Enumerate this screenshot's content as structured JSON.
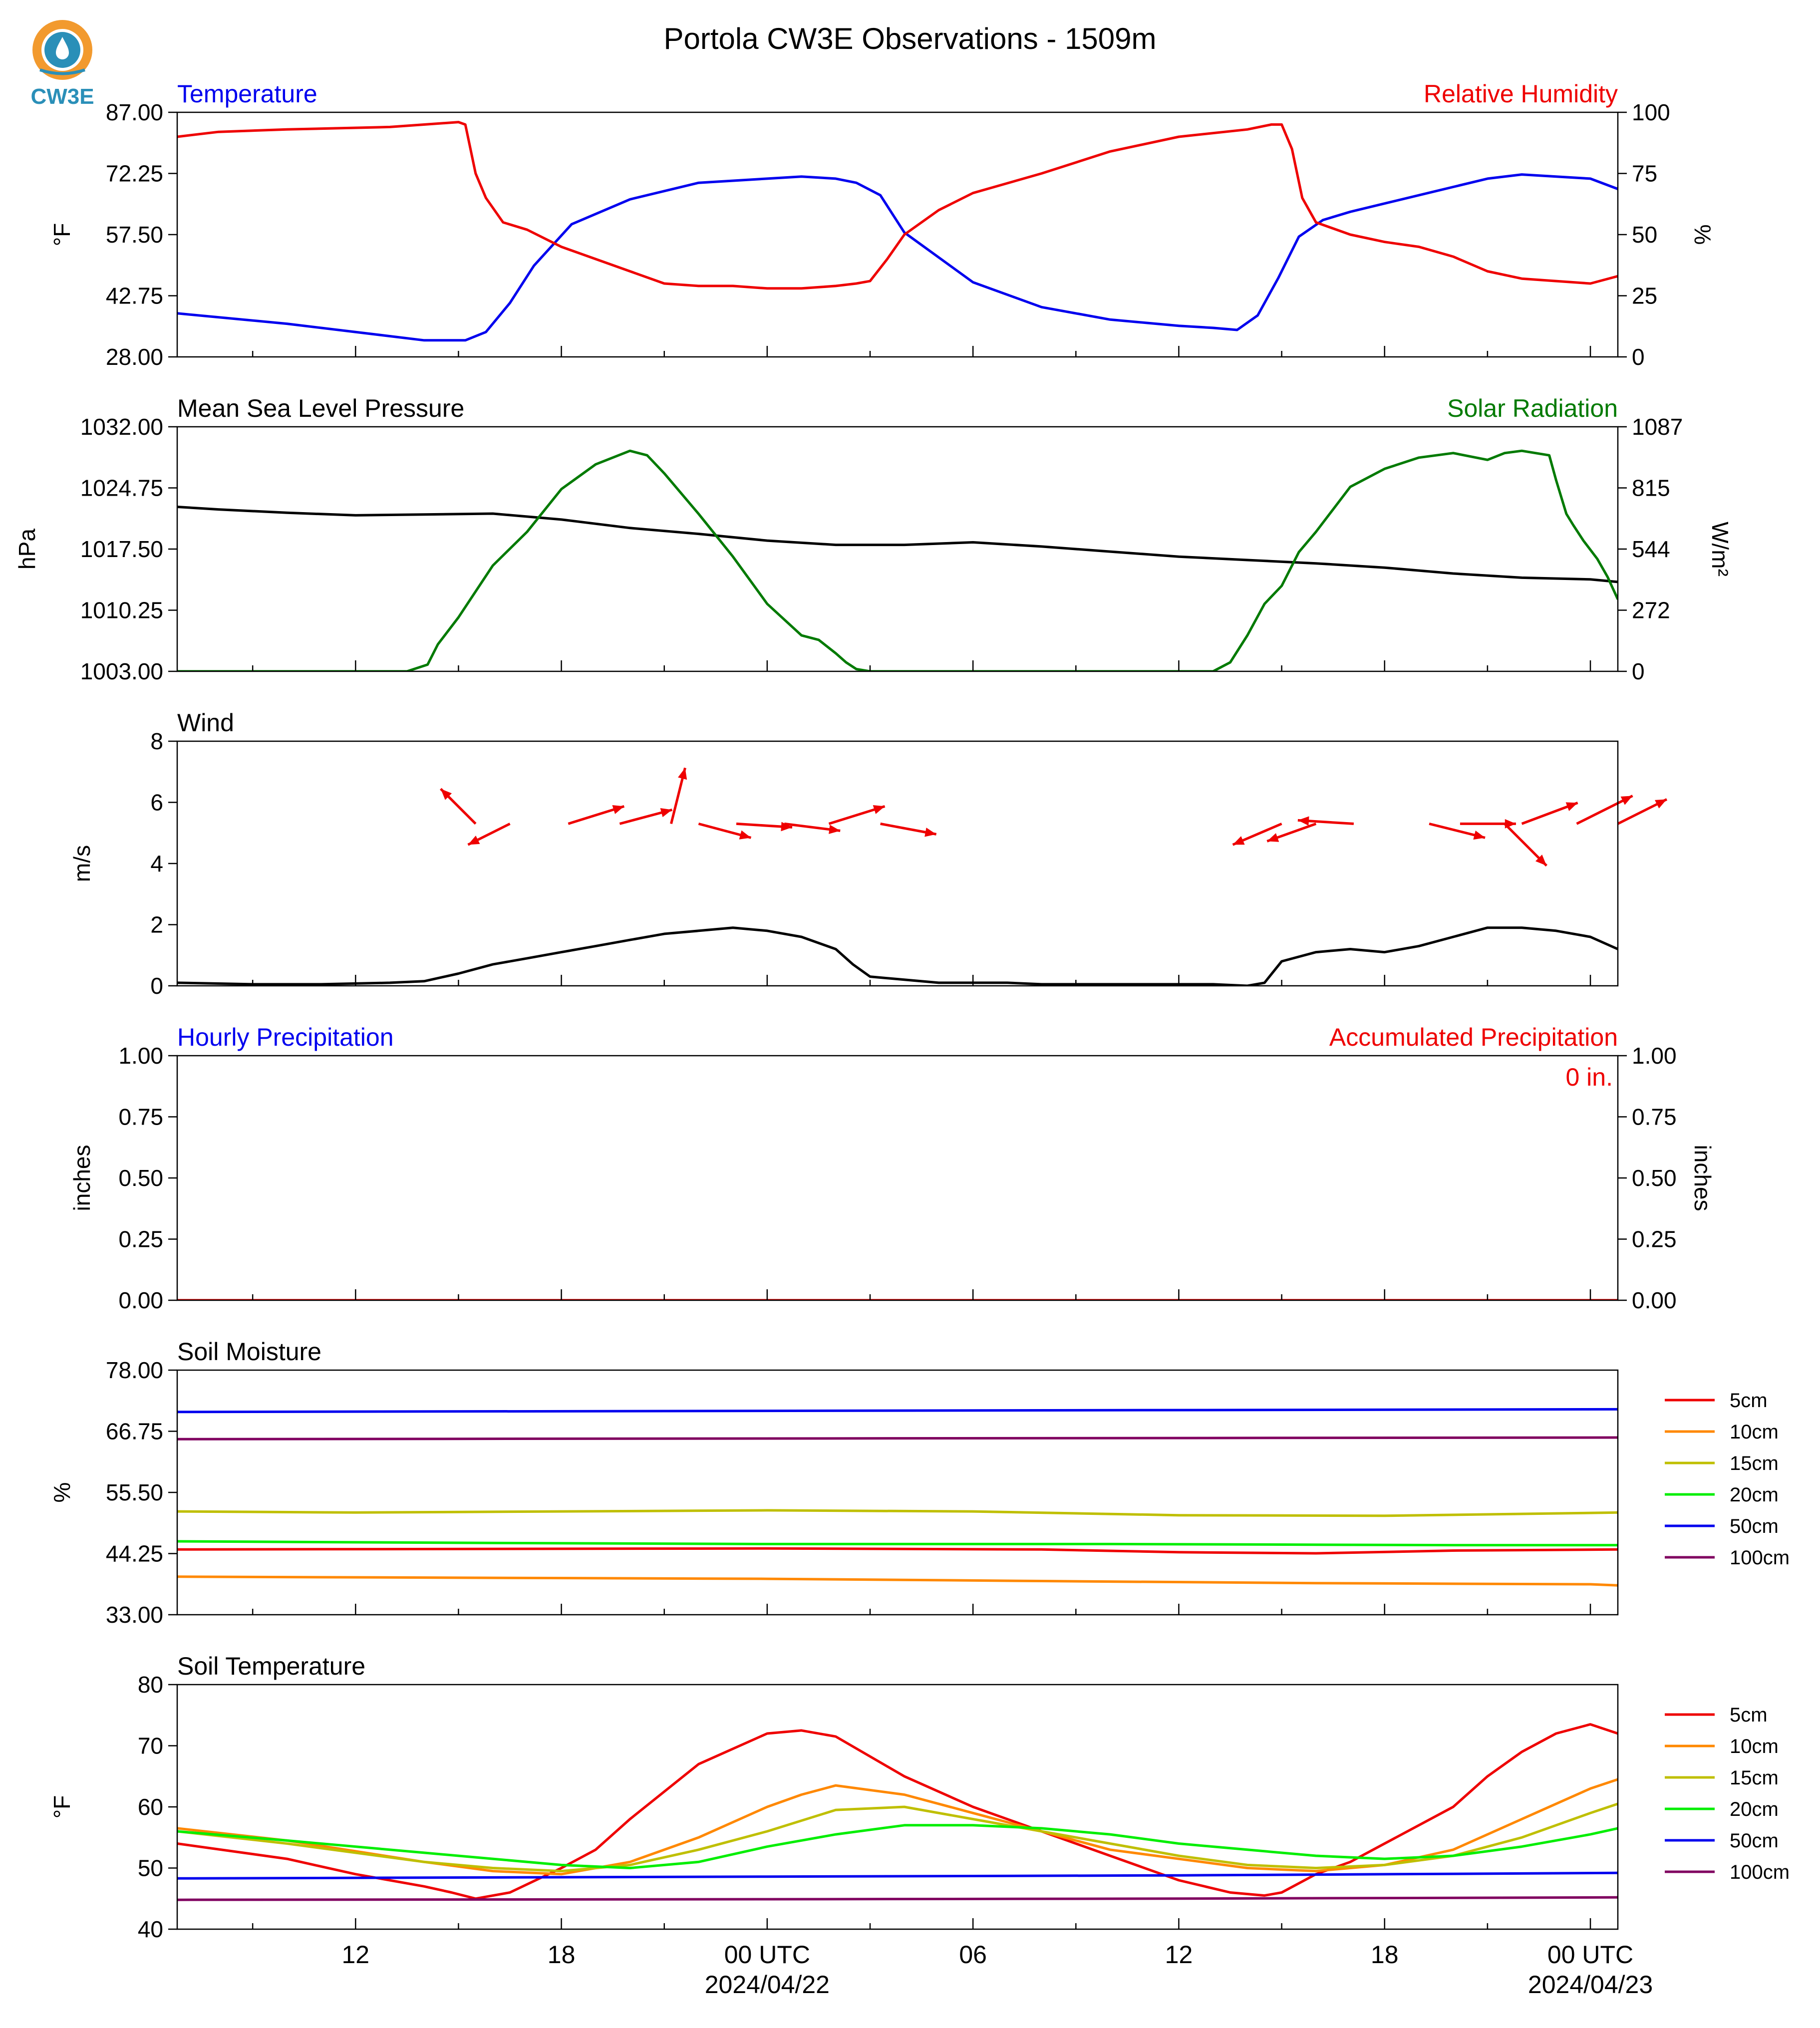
{
  "title": "Portola CW3E Observations - 1509m",
  "logo_text": "CW3E",
  "colors": {
    "temp": "#0000ee",
    "rh": "#ee0000",
    "pressure": "#000000",
    "solar": "#007a00",
    "wind_arrow": "#ee0000",
    "wind_line": "#000000",
    "d5": "#ee0000",
    "d10": "#ff8800",
    "d15": "#bfbf00",
    "d20": "#00ee00",
    "d50": "#0000ee",
    "d100": "#800060"
  },
  "x_axis": {
    "range_hours": [
      -17.2,
      24.8
    ],
    "ticks": [
      {
        "h": -12,
        "label": "12",
        "sub": ""
      },
      {
        "h": -6,
        "label": "18",
        "sub": ""
      },
      {
        "h": 0,
        "label": "00 UTC",
        "sub": "2024/04/22"
      },
      {
        "h": 6,
        "label": "06",
        "sub": ""
      },
      {
        "h": 12,
        "label": "12",
        "sub": ""
      },
      {
        "h": 18,
        "label": "18",
        "sub": ""
      },
      {
        "h": 24,
        "label": "00 UTC",
        "sub": "2024/04/23"
      }
    ]
  },
  "chart_data": [
    {
      "type": "line",
      "title_left": "Temperature",
      "title_right": "Relative Humidity",
      "ylabel_left": "$^\\circ$F",
      "ylabel_right": "%",
      "ylim": [
        28,
        87
      ],
      "yticks": [
        "28.00",
        "42.75",
        "57.50",
        "72.25",
        "87.00"
      ],
      "ylim_right": [
        0,
        100
      ],
      "yticks_right": [
        "0",
        "25",
        "50",
        "75",
        "100"
      ],
      "series": [
        {
          "name": "Temperature",
          "axis": "left",
          "x": [
            -17.2,
            -14,
            -11,
            -10,
            -8.8,
            -8.2,
            -7.5,
            -6.8,
            -5.7,
            -4,
            -2,
            0,
            1,
            2,
            2.6,
            3.3,
            4,
            6,
            8,
            10,
            12,
            13,
            13.7,
            14.3,
            14.9,
            15.5,
            16.2,
            17,
            18,
            20,
            21,
            22,
            23,
            24,
            24.8
          ],
          "y": [
            38.5,
            36,
            33,
            32,
            32,
            34,
            41,
            50,
            60,
            66,
            70,
            71,
            71.5,
            71,
            70,
            67,
            58,
            46,
            40,
            37,
            35.5,
            35,
            34.5,
            38,
            47,
            57,
            61,
            63,
            65,
            69,
            71,
            72,
            71.5,
            71,
            68.5
          ]
        },
        {
          "name": "Relative Humidity",
          "axis": "right",
          "x": [
            -17.2,
            -16,
            -14,
            -11,
            -9,
            -8.8,
            -8.5,
            -8.2,
            -7.7,
            -7,
            -6,
            -5,
            -4,
            -3,
            -2,
            -1,
            0,
            1,
            2,
            2.6,
            3,
            3.5,
            4,
            5,
            6,
            8,
            10,
            12,
            14,
            14.7,
            15,
            15.3,
            15.6,
            16,
            17,
            18,
            19,
            20,
            21,
            22,
            23,
            24,
            24.8
          ],
          "y": [
            90,
            92,
            93,
            94,
            96,
            95,
            75,
            65,
            55,
            52,
            45,
            40,
            35,
            30,
            29,
            29,
            28,
            28,
            29,
            30,
            31,
            40,
            50,
            60,
            67,
            75,
            84,
            90,
            93,
            95,
            95,
            85,
            65,
            55,
            50,
            47,
            45,
            41,
            35,
            32,
            31,
            30,
            33
          ]
        }
      ]
    },
    {
      "type": "line",
      "title_left": "Mean Sea Level Pressure",
      "title_right": "Solar Radiation",
      "ylabel_left": "hPa",
      "ylabel_right": "W/m²",
      "ylim": [
        1003,
        1032
      ],
      "yticks": [
        "1003.00",
        "1010.25",
        "1017.50",
        "1024.75",
        "1032.00"
      ],
      "ylim_right": [
        0,
        1087
      ],
      "yticks_right": [
        "0",
        "272",
        "544",
        "815",
        "1087"
      ],
      "series": [
        {
          "name": "Mean Sea Level Pressure",
          "axis": "left",
          "x": [
            -17.2,
            -16,
            -14,
            -12,
            -10,
            -8,
            -6,
            -4,
            -2,
            0,
            2,
            4,
            6,
            8,
            10,
            12,
            14,
            16,
            18,
            20,
            22,
            24,
            24.8
          ],
          "y": [
            1022.5,
            1022.2,
            1021.8,
            1021.5,
            1021.6,
            1021.7,
            1021,
            1020,
            1019.3,
            1018.5,
            1018,
            1018,
            1018.3,
            1017.8,
            1017.2,
            1016.6,
            1016.2,
            1015.8,
            1015.3,
            1014.6,
            1014.1,
            1013.9,
            1013.6
          ]
        },
        {
          "name": "Solar Radiation",
          "axis": "right",
          "x": [
            -17.2,
            -10.5,
            -9.9,
            -9.6,
            -9,
            -8,
            -7,
            -6,
            -5,
            -4,
            -3.5,
            -3,
            -2,
            -1,
            0,
            1,
            1.5,
            2,
            2.3,
            2.6,
            3,
            13,
            13.5,
            14,
            14.5,
            15,
            15.5,
            16,
            17,
            18,
            19,
            20,
            21,
            21.5,
            22,
            22.8,
            23,
            23.3,
            23.5,
            23.8,
            24.2,
            24.5,
            24.8
          ],
          "y": [
            0,
            0,
            30,
            120,
            240,
            470,
            620,
            810,
            920,
            980,
            960,
            880,
            700,
            510,
            300,
            160,
            140,
            80,
            40,
            10,
            0,
            0,
            40,
            160,
            300,
            380,
            530,
            620,
            820,
            900,
            950,
            970,
            940,
            970,
            980,
            960,
            850,
            700,
            650,
            580,
            500,
            420,
            320
          ]
        }
      ]
    },
    {
      "type": "line",
      "title_left": "Wind",
      "ylabel_left": "m/s",
      "ylim": [
        0,
        8
      ],
      "yticks": [
        "0",
        "2",
        "4",
        "6",
        "8"
      ],
      "series": [
        {
          "name": "Wind Speed",
          "axis": "left",
          "x": [
            -17.2,
            -15,
            -13,
            -11,
            -10,
            -9,
            -8,
            -7,
            -6,
            -5,
            -4,
            -3,
            -2,
            -1,
            0,
            1,
            2,
            2.5,
            3,
            4,
            5,
            6,
            7,
            8,
            9,
            10,
            11,
            12,
            13,
            14,
            14.5,
            15,
            16,
            17,
            18,
            19,
            20,
            21,
            22,
            23,
            24,
            24.8
          ],
          "y": [
            0.1,
            0.05,
            0.05,
            0.1,
            0.15,
            0.4,
            0.7,
            0.9,
            1.1,
            1.3,
            1.5,
            1.7,
            1.8,
            1.9,
            1.8,
            1.6,
            1.2,
            0.7,
            0.3,
            0.2,
            0.1,
            0.1,
            0.1,
            0.05,
            0.05,
            0.05,
            0.05,
            0.05,
            0.05,
            0,
            0.1,
            0.8,
            1.1,
            1.2,
            1.1,
            1.3,
            1.6,
            1.9,
            1.9,
            1.8,
            1.6,
            1.2
          ]
        }
      ]
    },
    {
      "type": "line",
      "title_left": "Hourly Precipitation",
      "title_right": "Accumulated Precipitation",
      "ylabel_left": "inches",
      "ylabel_right": "inches",
      "annotation": "0 in.",
      "ylim": [
        0,
        1
      ],
      "yticks": [
        "0.00",
        "0.25",
        "0.50",
        "0.75",
        "1.00"
      ],
      "ylim_right": [
        0,
        1
      ],
      "yticks_right": [
        "0.00",
        "0.25",
        "0.50",
        "0.75",
        "1.00"
      ],
      "series": [
        {
          "name": "Hourly Precipitation",
          "axis": "left",
          "x": [
            -17.2,
            24.8
          ],
          "y": [
            0,
            0
          ]
        }
      ]
    },
    {
      "type": "line",
      "title_left": "Soil Moisture",
      "ylabel_left": "%",
      "ylim": [
        33,
        78
      ],
      "yticks": [
        "33.00",
        "44.25",
        "55.50",
        "66.75",
        "78.00"
      ],
      "legend_position": "right",
      "series": [
        {
          "name": "5cm",
          "color_key": "d5",
          "x": [
            -17.2,
            0,
            8,
            12,
            16,
            20,
            24.8
          ],
          "y": [
            45,
            45.2,
            45,
            44.5,
            44.3,
            44.8,
            45
          ]
        },
        {
          "name": "10cm",
          "color_key": "d10",
          "x": [
            -17.2,
            0,
            8,
            16,
            24,
            24.8
          ],
          "y": [
            40,
            39.6,
            39.2,
            38.8,
            38.6,
            38.4
          ]
        },
        {
          "name": "15cm",
          "color_key": "d15",
          "x": [
            -17.2,
            -12,
            0,
            6,
            12,
            18,
            24.8
          ],
          "y": [
            52,
            51.8,
            52.2,
            52,
            51.3,
            51.2,
            51.8
          ]
        },
        {
          "name": "20cm",
          "color_key": "d20",
          "x": [
            -17.2,
            -8,
            0,
            10,
            20,
            24.8
          ],
          "y": [
            46.5,
            46.2,
            46,
            46,
            45.8,
            45.8
          ]
        },
        {
          "name": "50cm",
          "color_key": "d50",
          "x": [
            -17.2,
            24.8
          ],
          "y": [
            70.3,
            70.8
          ]
        },
        {
          "name": "100cm",
          "color_key": "d100",
          "x": [
            -17.2,
            24.8
          ],
          "y": [
            65.3,
            65.6
          ]
        }
      ]
    },
    {
      "type": "line",
      "title_left": "Soil Temperature",
      "ylabel_left": "$^\\circ$F",
      "ylim": [
        40,
        80
      ],
      "yticks": [
        "40",
        "50",
        "60",
        "70",
        "80"
      ],
      "legend_position": "right",
      "series": [
        {
          "name": "5cm",
          "color_key": "d5",
          "x": [
            -17.2,
            -14,
            -12,
            -10,
            -9.2,
            -8.5,
            -7.5,
            -6,
            -5,
            -4,
            -2,
            0,
            1,
            2,
            4,
            6,
            8,
            10,
            12,
            13.5,
            14.5,
            15,
            16,
            17,
            18,
            20,
            21,
            22,
            23,
            24,
            24.8
          ],
          "y": [
            54,
            51.5,
            49,
            47,
            46,
            45,
            46,
            50,
            53,
            58,
            67,
            72,
            72.5,
            71.5,
            65,
            60,
            56,
            52,
            48,
            46,
            45.5,
            46,
            49,
            51,
            54,
            60,
            65,
            69,
            72,
            73.5,
            72
          ]
        },
        {
          "name": "10cm",
          "color_key": "d10",
          "x": [
            -17.2,
            -14,
            -10,
            -8,
            -6,
            -4,
            -2,
            0,
            1,
            2,
            4,
            6,
            8,
            10,
            12,
            14,
            16,
            18,
            20,
            22,
            24,
            24.8
          ],
          "y": [
            56.5,
            54.5,
            51,
            49.5,
            49,
            51,
            55,
            60,
            62,
            63.5,
            62,
            59,
            56,
            53,
            51.5,
            50,
            49.5,
            50.5,
            53,
            58,
            63,
            64.5
          ]
        },
        {
          "name": "15cm",
          "color_key": "d15",
          "x": [
            -17.2,
            -14,
            -10,
            -8,
            -6,
            -4,
            -2,
            0,
            2,
            4,
            6,
            8,
            10,
            12,
            14,
            16,
            18,
            20,
            22,
            24,
            24.8
          ],
          "y": [
            56,
            54,
            51,
            50,
            49.5,
            50.5,
            53,
            56,
            59.5,
            60,
            58,
            56,
            54,
            52,
            50.5,
            50,
            50.5,
            52,
            55,
            59,
            60.5
          ]
        },
        {
          "name": "20cm",
          "color_key": "d20",
          "x": [
            -17.2,
            -14,
            -10,
            -8,
            -6,
            -4,
            -2,
            0,
            2,
            4,
            6,
            8,
            10,
            12,
            14,
            16,
            18,
            20,
            22,
            24,
            24.8
          ],
          "y": [
            56,
            54.5,
            52.5,
            51.5,
            50.5,
            50,
            51,
            53.5,
            55.5,
            57,
            57,
            56.5,
            55.5,
            54,
            53,
            52,
            51.5,
            52,
            53.5,
            55.5,
            56.5
          ]
        },
        {
          "name": "50cm",
          "color_key": "d50",
          "x": [
            -17.2,
            0,
            12,
            24.8
          ],
          "y": [
            48.3,
            48.6,
            48.8,
            49.2
          ]
        },
        {
          "name": "100cm",
          "color_key": "d100",
          "x": [
            -17.2,
            0,
            12,
            24.8
          ],
          "y": [
            44.8,
            44.9,
            45,
            45.2
          ]
        }
      ]
    }
  ],
  "wind_vectors": [
    {
      "h": -8.5,
      "u": -1.0,
      "v": 1.0
    },
    {
      "h": -7.5,
      "u": -1.2,
      "v": -0.6
    },
    {
      "h": -5.8,
      "u": 1.6,
      "v": 0.5
    },
    {
      "h": -4.3,
      "u": 1.5,
      "v": 0.4
    },
    {
      "h": -2.8,
      "u": 0.4,
      "v": 1.6
    },
    {
      "h": -2.0,
      "u": 1.5,
      "v": -0.4
    },
    {
      "h": -0.9,
      "u": 1.6,
      "v": -0.1
    },
    {
      "h": 0.5,
      "u": 1.6,
      "v": -0.2
    },
    {
      "h": 1.8,
      "u": 1.6,
      "v": 0.5
    },
    {
      "h": 3.3,
      "u": 1.6,
      "v": -0.3
    },
    {
      "h": 15.0,
      "u": -1.4,
      "v": -0.6
    },
    {
      "h": 16.0,
      "u": -1.4,
      "v": -0.5
    },
    {
      "h": 17.1,
      "u": -1.6,
      "v": 0.1
    },
    {
      "h": 19.3,
      "u": 1.6,
      "v": -0.4
    },
    {
      "h": 20.2,
      "u": 1.6,
      "v": 0.0
    },
    {
      "h": 21.5,
      "u": 1.2,
      "v": -1.2
    },
    {
      "h": 22.0,
      "u": 1.6,
      "v": 0.6
    },
    {
      "h": 23.6,
      "u": 1.6,
      "v": 0.8
    },
    {
      "h": 24.8,
      "u": 1.4,
      "v": 0.7
    }
  ]
}
